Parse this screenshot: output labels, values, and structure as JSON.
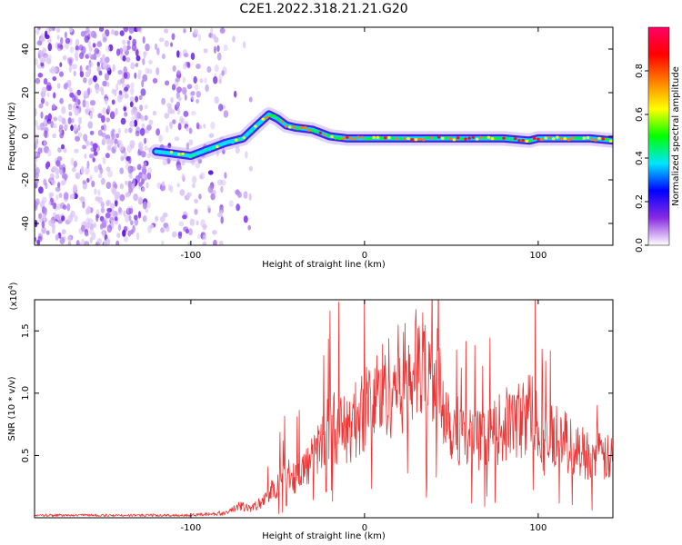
{
  "title": "C2E1.2022.318.21.21.G20",
  "chart_data": [
    {
      "type": "heatmap",
      "xlabel": "Height of straight line (km)",
      "ylabel": "Frequency (Hz)",
      "xlim": [
        -190,
        143
      ],
      "ylim": [
        -50,
        50
      ],
      "x_ticks": [
        -100,
        0,
        100
      ],
      "y_ticks": [
        -40,
        -20,
        0,
        20,
        40
      ],
      "colorbar": {
        "label": "Normalized spectral amplitude",
        "range": [
          0,
          1
        ],
        "ticks": [
          "0.0",
          "0.2",
          "0.4",
          "0.6",
          "0.8"
        ],
        "colors": [
          "#ffffff",
          "#8a2be2",
          "#0000ff",
          "#00e5ff",
          "#00ff00",
          "#ffff00",
          "#ff8000",
          "#ff0000",
          "#ff0066"
        ]
      },
      "trace": {
        "x": [
          -120,
          -110,
          -100,
          -90,
          -80,
          -70,
          -62,
          -55,
          -50,
          -45,
          -40,
          -30,
          -20,
          -10,
          0,
          20,
          40,
          60,
          80,
          95,
          100,
          110,
          120,
          130,
          143
        ],
        "y": [
          -7,
          -8,
          -9,
          -6,
          -3,
          -1,
          5,
          10,
          8,
          5,
          4,
          3,
          0,
          -1,
          -1,
          -1,
          -1,
          -1,
          -1,
          -2,
          -1,
          -1,
          -1,
          -1,
          -2
        ]
      },
      "noise_region_x": [
        -190,
        -80
      ]
    },
    {
      "type": "line",
      "xlabel": "Height of straight line (km)",
      "ylabel": "SNR (10 * v/v)",
      "multiplier_label": "(x10",
      "multiplier_exp": "4",
      "multiplier_close": ")",
      "xlim": [
        -190,
        143
      ],
      "ylim": [
        0,
        1.75
      ],
      "x_ticks": [
        -100,
        0,
        100
      ],
      "y_ticks": [
        0.5,
        1.0,
        1.5
      ],
      "y_tick_labels": [
        "0.5",
        "1.0",
        "1.5"
      ],
      "color": "#ee3333",
      "envelope": {
        "x": [
          -190,
          -100,
          -80,
          -72,
          -65,
          -58,
          -50,
          -45,
          -40,
          -30,
          -20,
          -10,
          0,
          10,
          20,
          30,
          40,
          45,
          50,
          60,
          70,
          80,
          90,
          97,
          100,
          103,
          110,
          120,
          130,
          143
        ],
        "y": [
          0.02,
          0.02,
          0.04,
          0.1,
          0.08,
          0.15,
          0.3,
          0.4,
          0.35,
          0.5,
          0.8,
          0.75,
          0.95,
          1.1,
          1.2,
          1.3,
          1.25,
          1.05,
          0.8,
          0.7,
          0.65,
          0.8,
          0.85,
          0.95,
          0.85,
          0.6,
          0.75,
          0.6,
          0.55,
          0.5
        ]
      }
    }
  ]
}
